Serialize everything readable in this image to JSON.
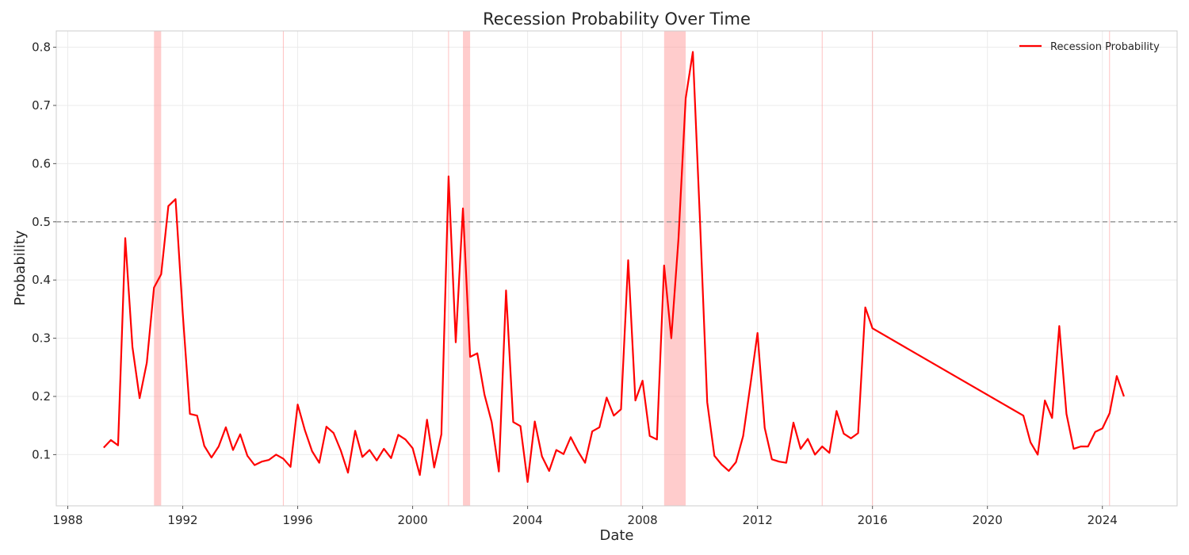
{
  "chart_data": {
    "type": "line",
    "title": "Recession Probability Over Time",
    "xlabel": "Date",
    "ylabel": "Probability",
    "xlim": [
      1987.6,
      2026.6
    ],
    "ylim": [
      0.012,
      0.828
    ],
    "x_ticks": [
      1988,
      1992,
      1996,
      2000,
      2004,
      2008,
      2012,
      2016,
      2020,
      2024
    ],
    "y_ticks": [
      0.1,
      0.2,
      0.3,
      0.4,
      0.5,
      0.6,
      0.7,
      0.8
    ],
    "grid": true,
    "legend_position": "top-right",
    "threshold": 0.5,
    "threshold_color": "#999999",
    "series": [
      {
        "name": "Recession Probability",
        "color": "#ff0000",
        "x": [
          1989.25,
          1989.5,
          1989.75,
          1990.0,
          1990.25,
          1990.5,
          1990.75,
          1991.0,
          1991.25,
          1991.5,
          1991.75,
          1992.0,
          1992.25,
          1992.5,
          1992.75,
          1993.0,
          1993.25,
          1993.5,
          1993.75,
          1994.0,
          1994.25,
          1994.5,
          1994.75,
          1995.0,
          1995.25,
          1995.5,
          1995.75,
          1996.0,
          1996.25,
          1996.5,
          1996.75,
          1997.0,
          1997.25,
          1997.5,
          1997.75,
          1998.0,
          1998.25,
          1998.5,
          1998.75,
          1999.0,
          1999.25,
          1999.5,
          1999.75,
          2000.0,
          2000.25,
          2000.5,
          2000.75,
          2001.0,
          2001.25,
          2001.5,
          2001.75,
          2002.0,
          2002.25,
          2002.5,
          2002.75,
          2003.0,
          2003.25,
          2003.5,
          2003.75,
          2004.0,
          2004.25,
          2004.5,
          2004.75,
          2005.0,
          2005.25,
          2005.5,
          2005.75,
          2006.0,
          2006.25,
          2006.5,
          2006.75,
          2007.0,
          2007.25,
          2007.5,
          2007.75,
          2008.0,
          2008.25,
          2008.5,
          2008.75,
          2009.0,
          2009.25,
          2009.5,
          2009.75,
          2010.0,
          2010.25,
          2010.5,
          2010.75,
          2011.0,
          2011.25,
          2011.5,
          2011.75,
          2012.0,
          2012.25,
          2012.5,
          2012.75,
          2013.0,
          2013.25,
          2013.5,
          2013.75,
          2014.0,
          2014.25,
          2014.5,
          2014.75,
          2015.0,
          2015.25,
          2015.5,
          2015.75,
          2016.0,
          2021.25,
          2021.5,
          2021.75,
          2022.0,
          2022.25,
          2022.5,
          2022.75,
          2023.0,
          2023.25,
          2023.5,
          2023.75,
          2024.0,
          2024.25,
          2024.5,
          2024.75
        ],
        "y": [
          0.112,
          0.125,
          0.116,
          0.472,
          0.285,
          0.197,
          0.258,
          0.387,
          0.41,
          0.527,
          0.539,
          0.343,
          0.17,
          0.167,
          0.115,
          0.095,
          0.114,
          0.147,
          0.108,
          0.135,
          0.098,
          0.082,
          0.088,
          0.091,
          0.1,
          0.093,
          0.079,
          0.186,
          0.142,
          0.106,
          0.086,
          0.148,
          0.137,
          0.107,
          0.069,
          0.141,
          0.096,
          0.108,
          0.09,
          0.11,
          0.094,
          0.134,
          0.126,
          0.111,
          0.065,
          0.16,
          0.078,
          0.135,
          0.578,
          0.293,
          0.523,
          0.268,
          0.274,
          0.203,
          0.156,
          0.071,
          0.382,
          0.156,
          0.149,
          0.053,
          0.157,
          0.097,
          0.072,
          0.108,
          0.101,
          0.13,
          0.106,
          0.086,
          0.14,
          0.147,
          0.198,
          0.167,
          0.178,
          0.434,
          0.193,
          0.227,
          0.132,
          0.126,
          0.425,
          0.3,
          0.471,
          0.712,
          0.792,
          0.5,
          0.19,
          0.098,
          0.083,
          0.072,
          0.087,
          0.132,
          0.219,
          0.309,
          0.146,
          0.092,
          0.088,
          0.086,
          0.155,
          0.11,
          0.127,
          0.1,
          0.114,
          0.103,
          0.175,
          0.136,
          0.128,
          0.137,
          0.353,
          0.317,
          0.167,
          0.121,
          0.1,
          0.193,
          0.163,
          0.321,
          0.17,
          0.11,
          0.114,
          0.114,
          0.139,
          0.145,
          0.171,
          0.235,
          0.2
        ]
      }
    ],
    "recession_bands": [
      {
        "start": 1991.0,
        "end": 1991.25
      },
      {
        "start": 2001.75,
        "end": 2002.0
      },
      {
        "start": 2008.75,
        "end": 2009.5
      }
    ],
    "recession_lines": [
      1995.5,
      2001.25,
      2007.25,
      2014.25,
      2016.0,
      2024.25
    ],
    "band_color": "#ff9999"
  }
}
